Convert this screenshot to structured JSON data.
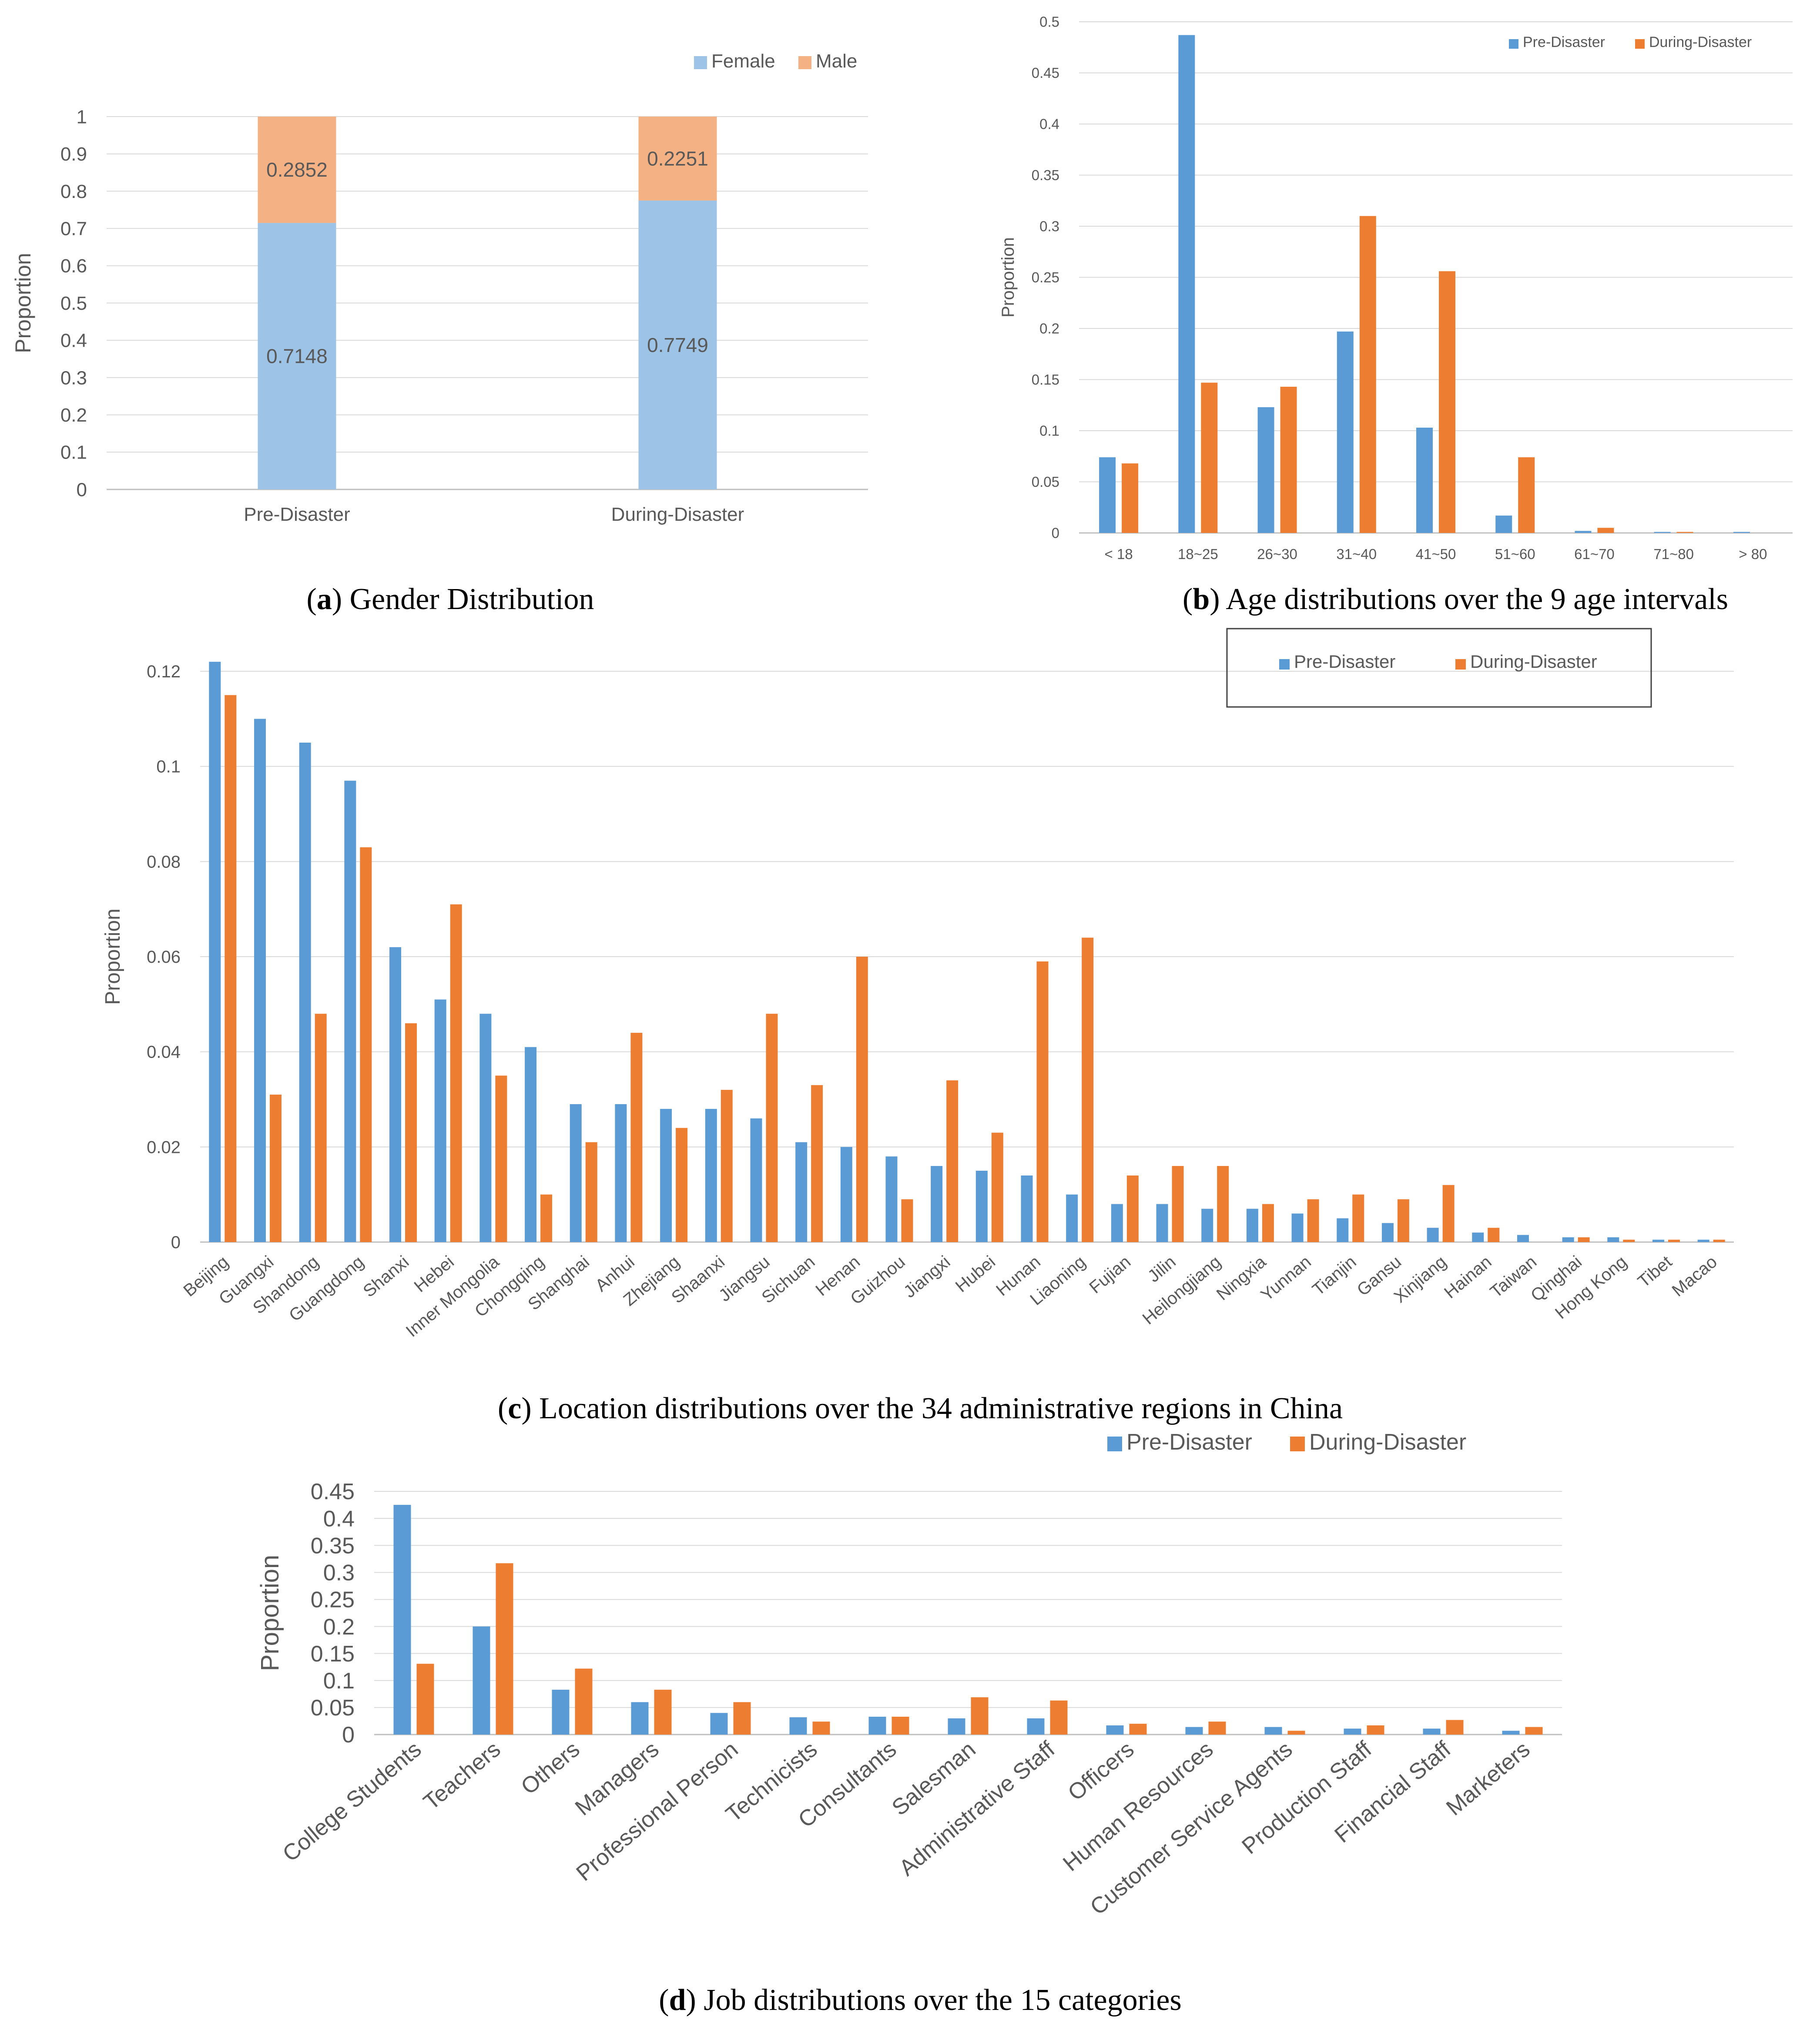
{
  "colors": {
    "pre": "#5b9bd5",
    "during": "#ed7d31",
    "female": "#9dc3e6",
    "male": "#f4b183",
    "grid": "#d9d9d9",
    "axis": "#bfbfbf",
    "text": "#595959"
  },
  "chart_data": [
    {
      "id": "a",
      "type": "bar",
      "stacked": true,
      "caption_letter": "a",
      "caption_text": " Gender Distribution",
      "ylabel": "Proportion",
      "ylim": [
        0,
        1
      ],
      "yticks": [
        "0",
        "0.1",
        "0.2",
        "0.3",
        "0.4",
        "0.5",
        "0.6",
        "0.7",
        "0.8",
        "0.9",
        "1"
      ],
      "categories": [
        "Pre-Disaster",
        "During-Disaster"
      ],
      "series": [
        {
          "name": "Female",
          "values": [
            0.7148,
            0.7749
          ],
          "labels": [
            "0.7148",
            "0.7749"
          ]
        },
        {
          "name": "Male",
          "values": [
            0.2852,
            0.2251
          ],
          "labels": [
            "0.2852",
            "0.2251"
          ]
        }
      ],
      "legend": "top-right",
      "grid": true
    },
    {
      "id": "b",
      "type": "bar",
      "caption_letter": "b",
      "caption_text": " Age distributions over the 9 age intervals",
      "ylabel": "Proportion",
      "ylim": [
        0,
        0.5
      ],
      "yticks": [
        "0",
        "0.05",
        "0.1",
        "0.15",
        "0.2",
        "0.25",
        "0.3",
        "0.35",
        "0.4",
        "0.45",
        "0.5"
      ],
      "categories": [
        "< 18",
        "18~25",
        "26~30",
        "31~40",
        "41~50",
        "51~60",
        "61~70",
        "71~80",
        "> 80"
      ],
      "series": [
        {
          "name": "Pre-Disaster",
          "values": [
            0.074,
            0.487,
            0.123,
            0.197,
            0.103,
            0.017,
            0.002,
            0.001,
            0.001
          ]
        },
        {
          "name": "During-Disaster",
          "values": [
            0.068,
            0.147,
            0.143,
            0.31,
            0.256,
            0.074,
            0.005,
            0.001,
            0
          ]
        }
      ],
      "legend": "top-right",
      "grid": true
    },
    {
      "id": "c",
      "type": "bar",
      "caption_letter": "c",
      "caption_text": " Location distributions over the 34 administrative regions in China",
      "ylabel": "Proportion",
      "ylim": [
        0,
        0.12
      ],
      "yticks": [
        "0",
        "0.02",
        "0.04",
        "0.06",
        "0.08",
        "0.1",
        "0.12"
      ],
      "categories": [
        "Beijing",
        "Guangxi",
        "Shandong",
        "Guangdong",
        "Shanxi",
        "Hebei",
        "Inner Mongolia",
        "Chongqing",
        "Shanghai",
        "Anhui",
        "Zhejiang",
        "Shaanxi",
        "Jiangsu",
        "Sichuan",
        "Henan",
        "Guizhou",
        "Jiangxi",
        "Hubei",
        "Hunan",
        "Liaoning",
        "Fujian",
        "Jilin",
        "Heilongjiang",
        "Ningxia",
        "Yunnan",
        "Tianjin",
        "Gansu",
        "Xinjiang",
        "Hainan",
        "Taiwan",
        "Qinghai",
        "Hong Kong",
        "Tibet",
        "Macao"
      ],
      "series": [
        {
          "name": "Pre-Disaster",
          "values": [
            0.122,
            0.11,
            0.105,
            0.097,
            0.062,
            0.051,
            0.048,
            0.041,
            0.029,
            0.029,
            0.028,
            0.028,
            0.026,
            0.021,
            0.02,
            0.018,
            0.016,
            0.015,
            0.014,
            0.01,
            0.008,
            0.008,
            0.007,
            0.007,
            0.006,
            0.005,
            0.004,
            0.003,
            0.002,
            0.0015,
            0.001,
            0.001,
            0.0005,
            0.0005
          ]
        },
        {
          "name": "During-Disaster",
          "values": [
            0.115,
            0.031,
            0.048,
            0.083,
            0.046,
            0.071,
            0.035,
            0.01,
            0.021,
            0.044,
            0.024,
            0.032,
            0.048,
            0.033,
            0.06,
            0.009,
            0.034,
            0.023,
            0.059,
            0.064,
            0.014,
            0.016,
            0.016,
            0.008,
            0.009,
            0.01,
            0.009,
            0.012,
            0.003,
            0,
            0.001,
            0.0005,
            0.0005,
            0.0005
          ]
        }
      ],
      "legend": "top-right (boxed)",
      "grid": true
    },
    {
      "id": "d",
      "type": "bar",
      "caption_letter": "d",
      "caption_text": " Job distributions over the 15 categories",
      "ylabel": "Proportion",
      "ylim": [
        0,
        0.45
      ],
      "yticks": [
        "0",
        "0.05",
        "0.1",
        "0.15",
        "0.2",
        "0.25",
        "0.3",
        "0.35",
        "0.4",
        "0.45"
      ],
      "categories": [
        "College Students",
        "Teachers",
        "Others",
        "Managers",
        "Professional Person",
        "Technicists",
        "Consultants",
        "Salesman",
        "Administrative Staff",
        "Officers",
        "Human Resources",
        "Customer Service Agents",
        "Production Staff",
        "Financial Staff",
        "Marketers"
      ],
      "series": [
        {
          "name": "Pre-Disaster",
          "values": [
            0.425,
            0.2,
            0.083,
            0.06,
            0.04,
            0.032,
            0.033,
            0.03,
            0.03,
            0.017,
            0.014,
            0.014,
            0.011,
            0.011,
            0.007
          ]
        },
        {
          "name": "During-Disaster",
          "values": [
            0.131,
            0.317,
            0.122,
            0.083,
            0.06,
            0.024,
            0.033,
            0.069,
            0.063,
            0.02,
            0.024,
            0.007,
            0.017,
            0.027,
            0.014
          ]
        }
      ],
      "legend": "top-center",
      "grid": true
    }
  ]
}
